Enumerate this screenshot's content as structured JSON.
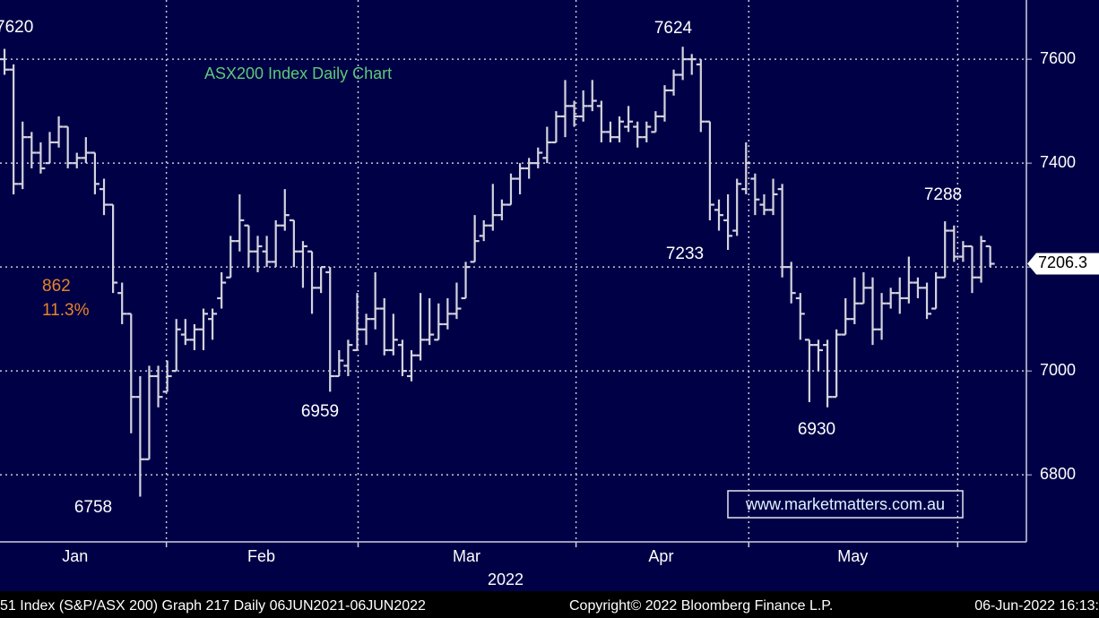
{
  "chart_data": {
    "type": "ohlc",
    "title": "ASX200 Index Daily Chart",
    "title_color": "#5fc87a",
    "color": "#d4d4de",
    "open": [
      7600,
      7580,
      7360,
      7450,
      7420,
      7400,
      7440,
      7470,
      7400,
      7410,
      7420,
      7350,
      7320,
      7150,
      7110,
      6950,
      6830,
      6990,
      6960,
      7000,
      7070,
      7060,
      7080,
      7100,
      7140,
      7180,
      7250,
      7280,
      7230,
      7230,
      7210,
      7280,
      7290,
      7230,
      7230,
      7160,
      7190,
      6990,
      7010,
      7040,
      7080,
      7100,
      7120,
      7040,
      7050,
      6990,
      7030,
      7060,
      7060,
      7090,
      7110,
      7140,
      7210,
      7260,
      7280,
      7300,
      7320,
      7370,
      7390,
      7400,
      7410,
      7440,
      7490,
      7510,
      7490,
      7510,
      7510,
      7460,
      7450,
      7470,
      7470,
      7450,
      7460,
      7490,
      7540,
      7570,
      7600,
      7590,
      7480,
      7310,
      7290,
      7270,
      7350,
      7370,
      7320,
      7310,
      7350,
      7200,
      7140,
      7060,
      7050,
      7050,
      6950,
      7070,
      7100,
      7130,
      7160,
      7080,
      7130,
      7150,
      7140,
      7170,
      7160,
      7120,
      7180,
      7270,
      7220,
      7240,
      7180,
      7240
    ],
    "high": [
      7620,
      7590,
      7480,
      7460,
      7440,
      7460,
      7490,
      7470,
      7420,
      7450,
      7420,
      7370,
      7320,
      7170,
      7110,
      6990,
      7010,
      7010,
      7020,
      7100,
      7100,
      7090,
      7120,
      7120,
      7190,
      7260,
      7340,
      7280,
      7260,
      7260,
      7290,
      7350,
      7290,
      7250,
      7230,
      7200,
      7200,
      7040,
      7060,
      7150,
      7110,
      7190,
      7140,
      7110,
      7060,
      7040,
      7150,
      7140,
      7130,
      7140,
      7170,
      7210,
      7300,
      7290,
      7360,
      7330,
      7380,
      7400,
      7410,
      7430,
      7470,
      7500,
      7560,
      7520,
      7540,
      7560,
      7520,
      7480,
      7490,
      7510,
      7480,
      7480,
      7500,
      7550,
      7580,
      7624,
      7610,
      7600,
      7480,
      7330,
      7340,
      7370,
      7440,
      7380,
      7340,
      7370,
      7360,
      7210,
      7150,
      7060,
      7060,
      7060,
      7080,
      7140,
      7180,
      7190,
      7180,
      7150,
      7160,
      7180,
      7220,
      7180,
      7170,
      7190,
      7288,
      7280,
      7250,
      7240,
      7260,
      7240
    ],
    "low": [
      7570,
      7340,
      7350,
      7390,
      7380,
      7400,
      7430,
      7390,
      7390,
      7400,
      7340,
      7300,
      7150,
      7090,
      6880,
      6758,
      6830,
      6930,
      6960,
      7000,
      7050,
      7040,
      7040,
      7060,
      7120,
      7180,
      7230,
      7200,
      7190,
      7200,
      7200,
      7270,
      7200,
      7160,
      7110,
      7150,
      6960,
      6990,
      6990,
      7040,
      7050,
      7080,
      7030,
      7030,
      6990,
      6980,
      7020,
      7050,
      7060,
      7080,
      7100,
      7140,
      7210,
      7250,
      7270,
      7290,
      7320,
      7340,
      7370,
      7390,
      7400,
      7440,
      7450,
      7470,
      7480,
      7500,
      7440,
      7440,
      7440,
      7460,
      7430,
      7440,
      7460,
      7480,
      7530,
      7560,
      7570,
      7460,
      7290,
      7270,
      7233,
      7260,
      7340,
      7300,
      7300,
      7300,
      7180,
      7130,
      7060,
      6940,
      7000,
      6930,
      6950,
      7070,
      7090,
      7130,
      7050,
      7060,
      7120,
      7110,
      7130,
      7140,
      7100,
      7120,
      7180,
      7210,
      7210,
      7150,
      7170,
      7200
    ],
    "close": [
      7580,
      7360,
      7450,
      7420,
      7390,
      7440,
      7470,
      7400,
      7410,
      7420,
      7360,
      7320,
      7170,
      7110,
      6950,
      6830,
      6990,
      6950,
      6990,
      7080,
      7060,
      7080,
      7110,
      7110,
      7170,
      7250,
      7290,
      7230,
      7240,
      7210,
      7280,
      7300,
      7230,
      7240,
      7160,
      7200,
      6990,
      7020,
      7050,
      7080,
      7100,
      7120,
      7040,
      7060,
      7000,
      7030,
      7060,
      7070,
      7090,
      7110,
      7120,
      7200,
      7250,
      7280,
      7300,
      7320,
      7370,
      7390,
      7400,
      7420,
      7440,
      7490,
      7510,
      7490,
      7510,
      7520,
      7460,
      7450,
      7480,
      7480,
      7450,
      7470,
      7490,
      7540,
      7570,
      7600,
      7600,
      7480,
      7320,
      7300,
      7260,
      7360,
      7400,
      7330,
      7310,
      7340,
      7200,
      7150,
      7110,
      7050,
      7040,
      6950,
      7070,
      7100,
      7130,
      7160,
      7080,
      7130,
      7150,
      7140,
      7170,
      7160,
      7110,
      7180,
      7270,
      7220,
      7240,
      7180,
      7250,
      7206.3
    ],
    "xlim": [
      -0.5,
      113
    ],
    "xticks": [
      {
        "value": 7.8,
        "label": "Jan"
      },
      {
        "value": 28.4,
        "label": "Feb"
      },
      {
        "value": 51.1,
        "label": "Mar"
      },
      {
        "value": 72.6,
        "label": "Apr"
      },
      {
        "value": 93.8,
        "label": "May"
      }
    ],
    "xgrid": [
      17.9,
      39.1,
      63.2,
      82.3,
      105.4
    ],
    "xlabel": "2022",
    "ylim": [
      6671,
      7714
    ],
    "yticks": [
      6800,
      7000,
      7200,
      7400,
      7600
    ],
    "grid": true,
    "last_price": {
      "value": 7206.3,
      "label": "7206.3"
    },
    "annotations": [
      "7620",
      "7624",
      "7233",
      "7288",
      "6959",
      "6758",
      "6930"
    ],
    "change_labels": [
      "862",
      "11.3%"
    ],
    "change_color": "#e8832a",
    "watermark": "www.marketmatters.com.au",
    "footer": [
      "51 Index (S&P/ASX 200) Graph 217  Daily 06JUN2021-06JUN2022",
      "Copyright© 2022 Bloomberg Finance L.P.",
      "06-Jun-2022 16:13:"
    ]
  }
}
